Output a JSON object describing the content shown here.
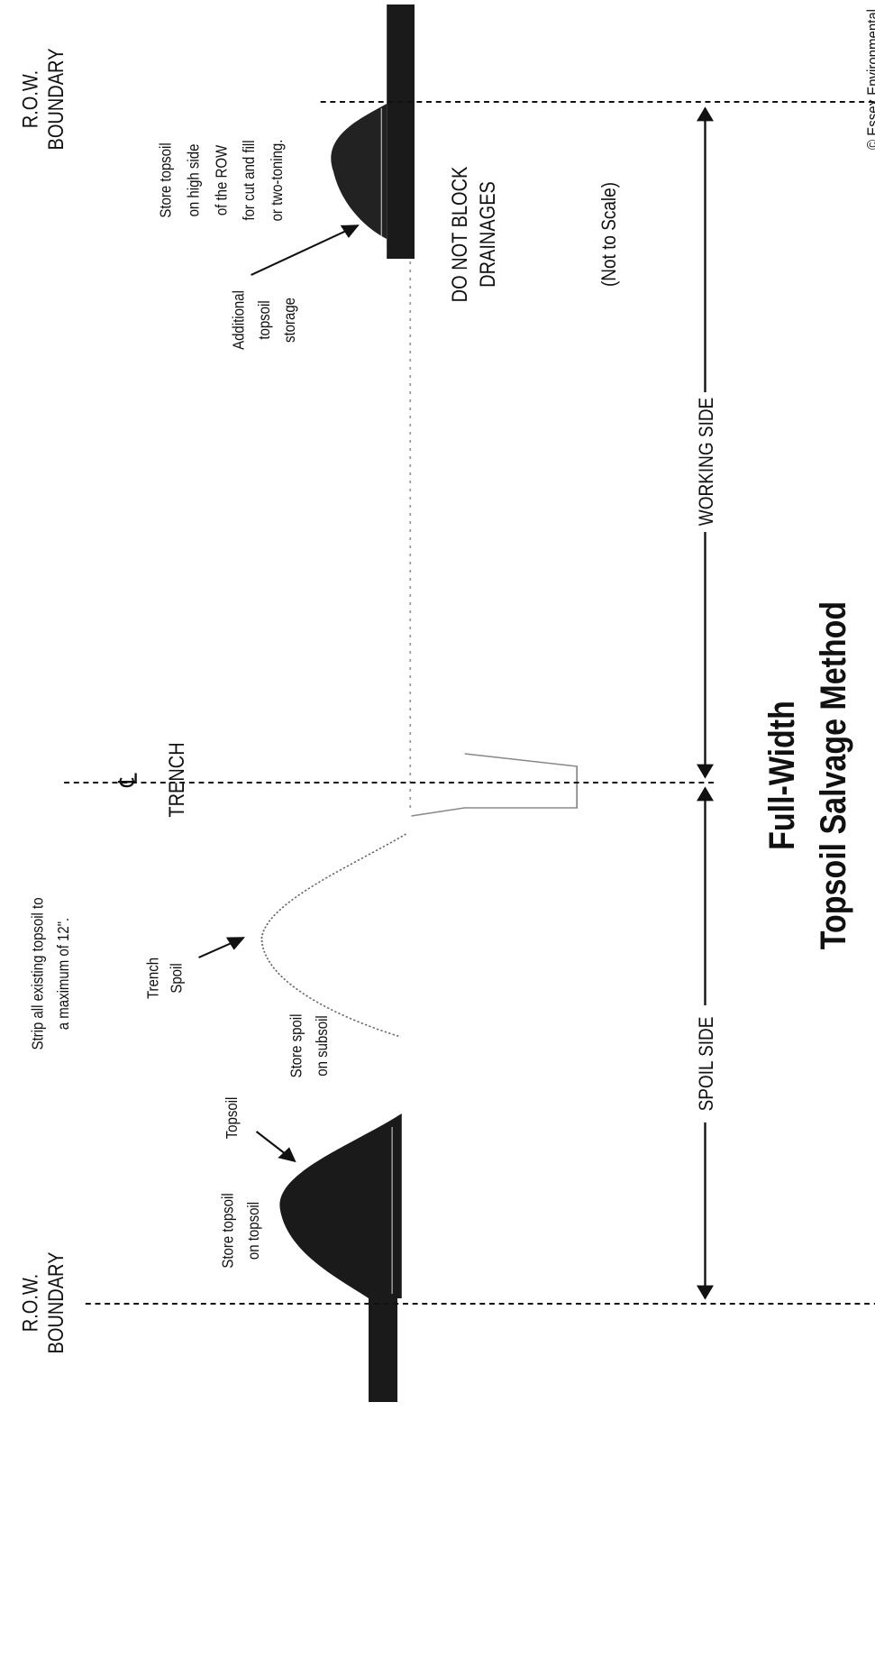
{
  "left_boundary": [
    "R.O.W.",
    "BOUNDARY"
  ],
  "right_boundary": [
    "R.O.W.",
    "BOUNDARY"
  ],
  "high_side_note": [
    "Store topsoil",
    "on high side",
    "of the ROW",
    "for cut and fill",
    "or two-toning."
  ],
  "additional_storage": [
    "Additional",
    "topsoil",
    "storage"
  ],
  "drainage_note": [
    "DO NOT BLOCK",
    "DRAINAGES"
  ],
  "scale_note": "(Not to Scale)",
  "working_side": "WORKING SIDE",
  "spoil_side": "SPOIL SIDE",
  "title": [
    "Full-Width",
    "Topsoil Salvage Method"
  ],
  "centerline_symbol": "℄",
  "trench": "TRENCH",
  "strip_note": [
    "Strip all existing topsoil to",
    "a maximum of 12\"."
  ],
  "trench_spoil": [
    "Trench",
    "Spoil"
  ],
  "spoil_note": [
    "Store spoil",
    "on subsoil"
  ],
  "topsoil": "Topsoil",
  "topsoil_note": [
    "Store topsoil",
    "on topsoil"
  ],
  "copyright": "© Essex Environmental"
}
